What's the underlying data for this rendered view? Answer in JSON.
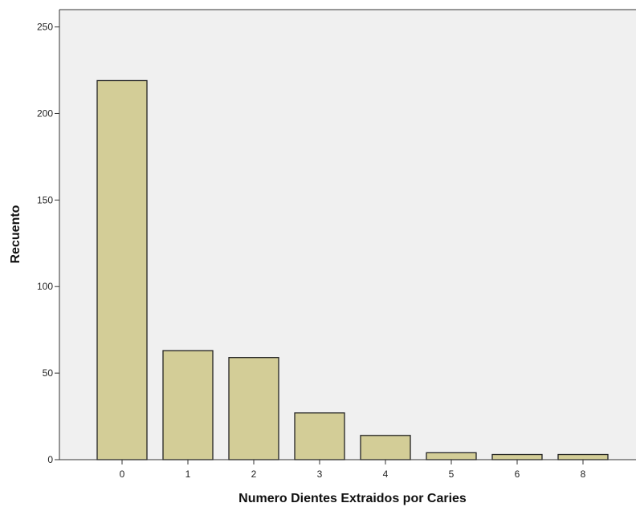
{
  "chart_data": {
    "type": "bar",
    "title": "",
    "xlabel": "Numero Dientes Extraidos por Caries",
    "ylabel": "Recuento",
    "categories": [
      "0",
      "1",
      "2",
      "3",
      "4",
      "5",
      "6",
      "8"
    ],
    "values": [
      219,
      63,
      59,
      27,
      14,
      4,
      3,
      3
    ],
    "ylim": [
      0,
      260
    ],
    "yticks": [
      0,
      50,
      100,
      150,
      200,
      250
    ],
    "grid": false,
    "legend": "none",
    "colors": {
      "bar_fill": "#d3cd97",
      "bar_stroke": "#222222",
      "plot_background": "#f0f0f0",
      "axis": "#333333"
    }
  }
}
